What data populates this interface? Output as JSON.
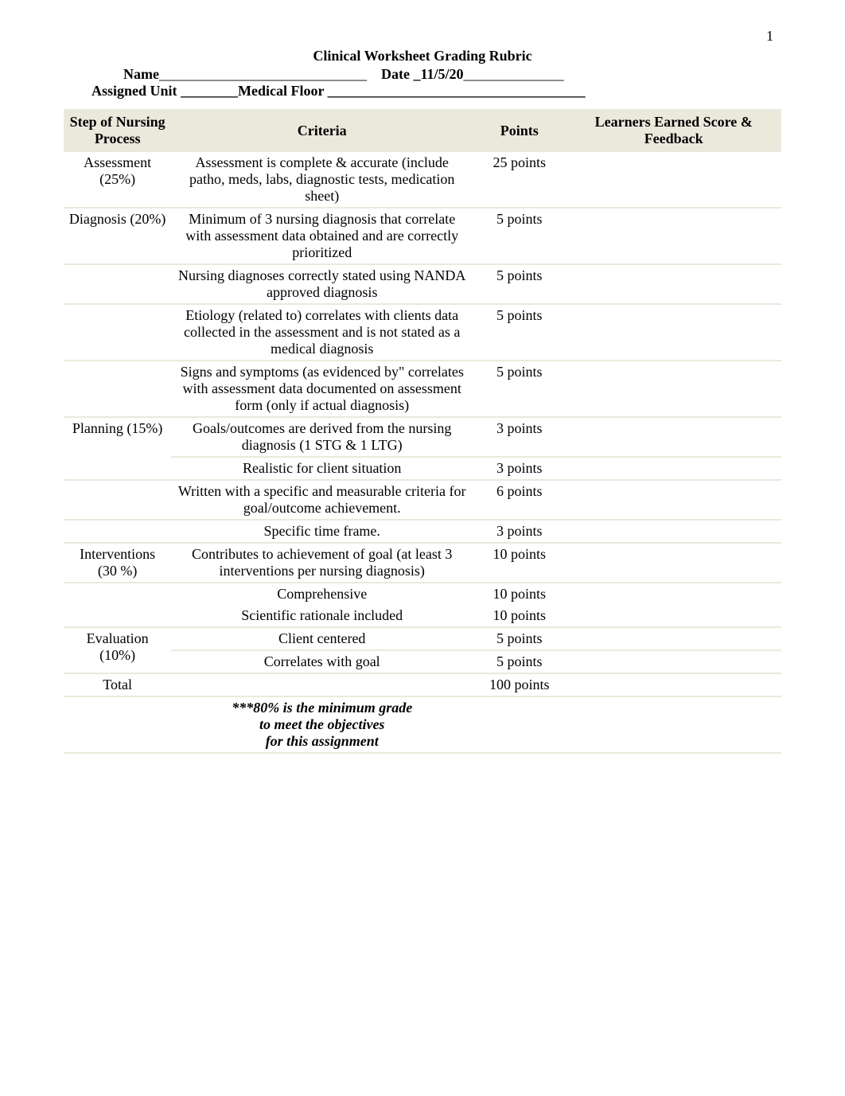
{
  "page_number": "1",
  "title": "Clinical Worksheet Grading Rubric",
  "header": {
    "name_label": "Name",
    "name_value": "_____________________________",
    "date_label": "Date _",
    "date_value": "11/5/20",
    "date_trail": "______________",
    "unit_label": "Assigned Unit ________",
    "floor_label": "Medical Floor ____________________________________"
  },
  "columns": {
    "c1": "Step of Nursing Process",
    "c2": "Criteria",
    "c3": "Points",
    "c4": "Learners Earned Score & Feedback"
  },
  "rows": [
    {
      "step": "Assessment (25%)",
      "criteria": "Assessment is complete & accurate (include patho, meds, labs, diagnostic tests, medication sheet)",
      "pts": "25 points",
      "fb": ""
    },
    {
      "step": "Diagnosis (20%)",
      "criteria": "Minimum of 3 nursing diagnosis that correlate with assessment data obtained and are correctly prioritized",
      "pts": "5 points",
      "fb": ""
    },
    {
      "step": "",
      "criteria": "Nursing diagnoses correctly stated using NANDA approved diagnosis",
      "pts": "5 points",
      "fb": ""
    },
    {
      "step": "",
      "criteria": "Etiology (related to) correlates with clients data collected in the assessment and is not stated as a medical diagnosis",
      "pts": "5 points",
      "fb": ""
    },
    {
      "step": "",
      "criteria": "Signs and symptoms (as evidenced by\" correlates with assessment data documented on assessment form (only if actual diagnosis)",
      "pts": "5 points",
      "fb": ""
    },
    {
      "step": "Planning (15%)",
      "criteria": "Goals/outcomes are derived from the nursing diagnosis (1 STG & 1 LTG)",
      "pts": "3 points",
      "fb": ""
    },
    {
      "step": "",
      "criteria": "Realistic for client situation",
      "pts": "3 points",
      "fb": ""
    },
    {
      "step": "",
      "criteria": "Written with a specific and measurable criteria for goal/outcome achievement.",
      "pts": "6 points",
      "fb": ""
    },
    {
      "step": "",
      "criteria": "Specific time frame.",
      "pts": "3 points",
      "fb": ""
    },
    {
      "step": "Interventions (30 %)",
      "criteria": "Contributes to achievement of goal (at least 3 interventions per nursing diagnosis)",
      "pts": "10 points",
      "fb": ""
    },
    {
      "step": "",
      "criteria": "Comprehensive",
      "pts": "10 points",
      "fb": ""
    },
    {
      "step": "",
      "criteria": "Scientific rationale included",
      "pts": "10 points",
      "fb": ""
    },
    {
      "step": "Evaluation (10%)",
      "criteria": "Client centered",
      "pts": "5 points",
      "fb": ""
    },
    {
      "step": "",
      "criteria": "Correlates with goal",
      "pts": "5 points",
      "fb": ""
    },
    {
      "step": "Total",
      "criteria": "",
      "pts": "100 points",
      "fb": ""
    }
  ],
  "footnote": {
    "l1": "***80% is the minimum grade",
    "l2": "to meet the objectives",
    "l3": "for this assignment"
  },
  "colors": {
    "band": "#ebe9dc",
    "bg": "#ffffff",
    "text": "#000000"
  }
}
